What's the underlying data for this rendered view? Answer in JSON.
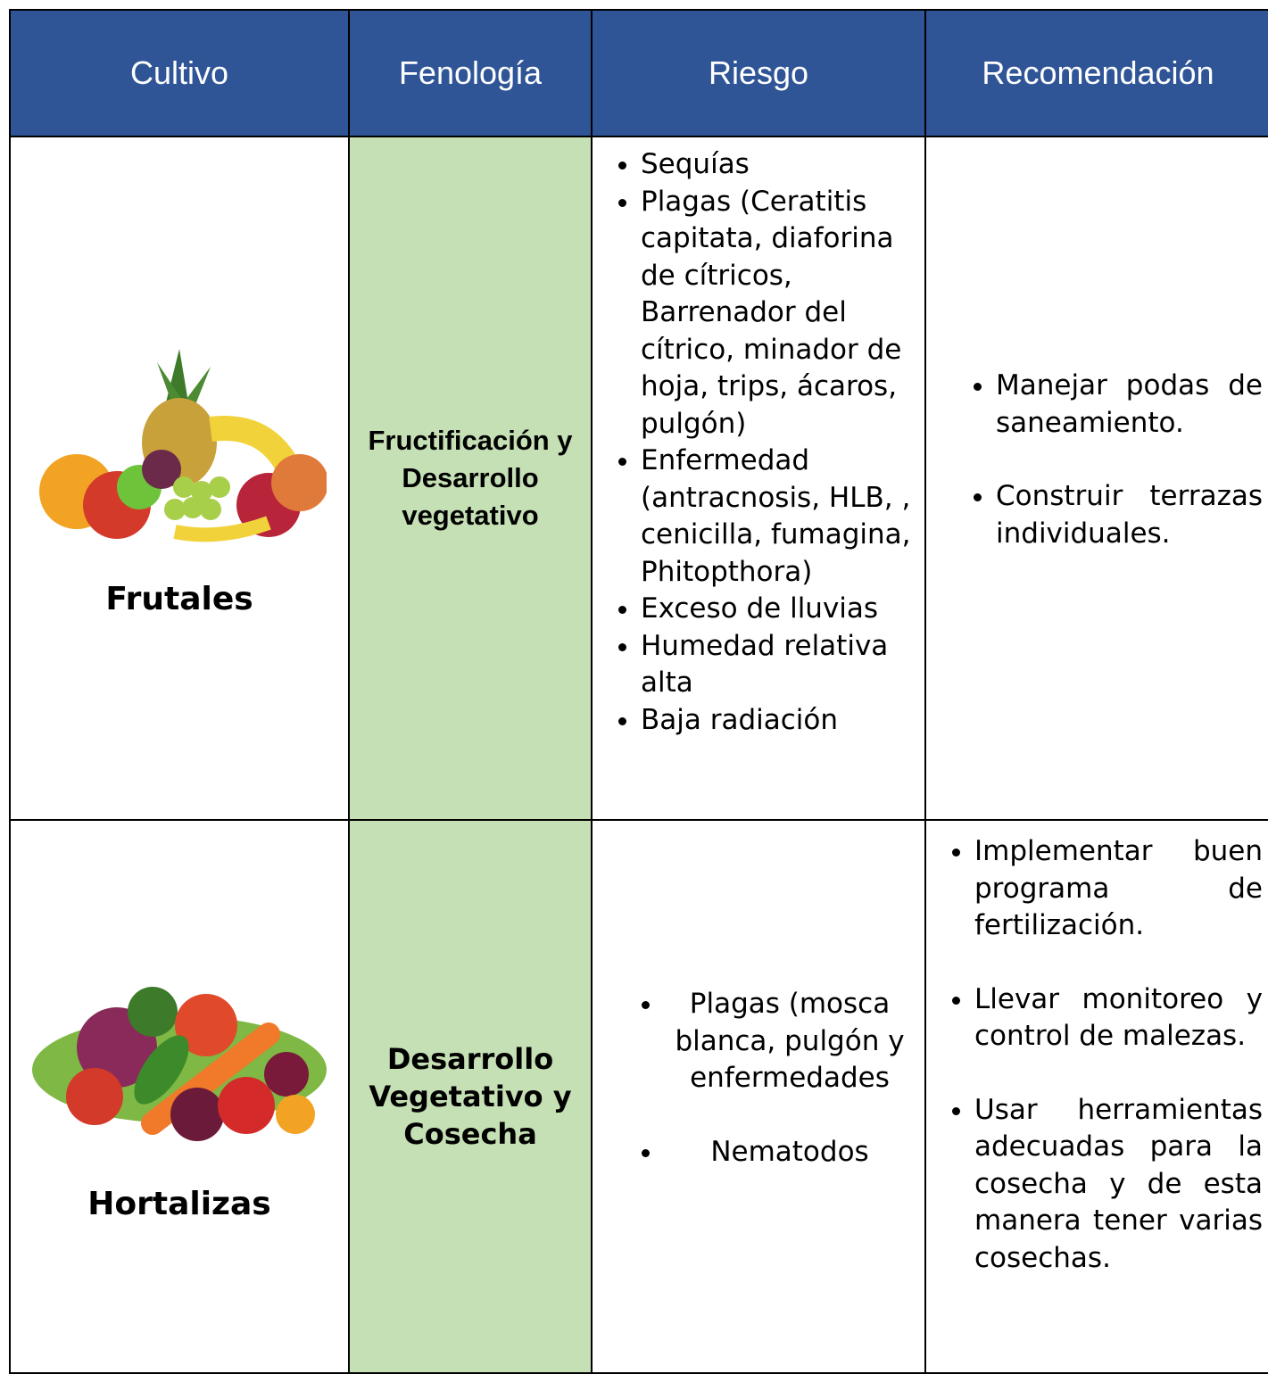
{
  "table": {
    "header": [
      "Cultivo",
      "Fenología",
      "Riesgo",
      "Recomendación"
    ],
    "rows": [
      {
        "cultivo": "Frutales",
        "fenologia": "Fructificación y Desarrollo vegetativo",
        "riesgo": [
          "Sequías",
          "Plagas (Ceratitis capitata, diaforina de cítricos, Barrenador del cítrico, minador de hoja, trips, ácaros, pulgón)",
          "Enfermedad (antracnosis, HLB, , cenicilla, fumagina, Phitopthora)",
          "Exceso de lluvias",
          "Humedad relativa alta",
          "Baja radiación"
        ],
        "recomendacion": [
          "Manejar podas de saneamiento.",
          "Construir terrazas individuales."
        ]
      },
      {
        "cultivo": "Hortalizas",
        "fenologia": "Desarrollo Vegetativo y Cosecha",
        "riesgo": [
          "Plagas (mosca blanca, pulgón y enfermedades",
          "Nematodos"
        ],
        "recomendacion": [
          "Implementar buen programa de fertilización.",
          "Llevar monitoreo y control de malezas.",
          "Usar herramientas adecuadas para la cosecha y de esta manera tener varias cosechas."
        ]
      }
    ]
  }
}
